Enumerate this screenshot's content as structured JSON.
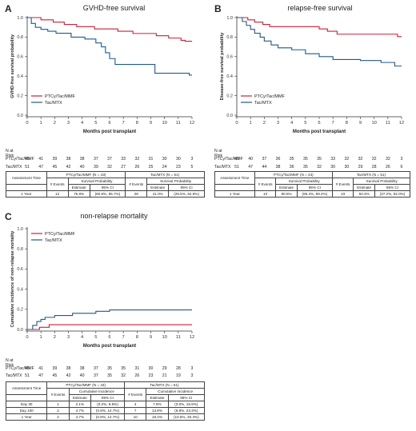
{
  "panels": {
    "A": {
      "letter": "A",
      "title": "GVHD-free survival",
      "ylabel": "GVHD-free survival probability",
      "xlabel": "Months post transplant",
      "legend": [
        "PTCy/Tac/MMF",
        "Tac/MTX"
      ],
      "risk_title": "N at Risk",
      "risk": [
        {
          "label": "PTCy/Tac/MMF",
          "values": [
            43,
            41,
            39,
            38,
            38,
            37,
            37,
            33,
            32,
            31,
            30,
            30,
            3
          ]
        },
        {
          "label": "Tac/MTX",
          "values": [
            51,
            47,
            45,
            42,
            40,
            39,
            32,
            27,
            26,
            25,
            24,
            23,
            5
          ]
        }
      ],
      "table": {
        "assess": "Assessment Time",
        "g1": "PTCy/Tac/MMF (N = 43)",
        "g2": "Tac/MTX (N = 51)",
        "sp": "Survival Probability",
        "events": "# Events",
        "est": "Estimate",
        "ci": "95% CI",
        "rows": [
          {
            "time": "1 Year",
            "e1": "12",
            "est1": "75.8%",
            "ci1": "(60.8%, 85.7%)",
            "e2": "28",
            "est2": "41.0%",
            "ci2": "(26.5%, 52.9%)"
          }
        ]
      }
    },
    "B": {
      "letter": "B",
      "title": "relapse-free survival",
      "ylabel": "Disease-free survival probability",
      "xlabel": "Months post transplant",
      "legend": [
        "PTCy/Tac/MMF",
        "Tac/MTX"
      ],
      "risk_title": "N at Risk",
      "risk": [
        {
          "label": "PTCy/Tac/MMF",
          "values": [
            43,
            40,
            37,
            36,
            35,
            35,
            35,
            33,
            32,
            32,
            32,
            32,
            3
          ]
        },
        {
          "label": "Tac/MTX",
          "values": [
            51,
            47,
            44,
            38,
            36,
            35,
            32,
            30,
            30,
            29,
            28,
            26,
            6
          ]
        }
      ],
      "table": {
        "assess": "Assessment Time",
        "g1": "PTCy/Tac/MMF (N = 43)",
        "g2": "Tac/MTX (N = 51)",
        "sp": "Survival Probability",
        "events": "# Events",
        "est": "Estimate",
        "ci": "95% CI",
        "rows": [
          {
            "time": "1 Year",
            "e1": "10",
            "est1": "80.5%",
            "ci1": "(66.2%, 89.2%)",
            "e2": "23",
            "est2": "50.3%",
            "ci2": "(37.2%, 62.0%)"
          }
        ]
      }
    },
    "C": {
      "letter": "C",
      "title": "non-relapse mortality",
      "ylabel": "Cumulative incidence of non-relapse mortality",
      "xlabel": "Months post transplant",
      "legend": [
        "PTCy/Tac/MMF",
        "Tac/MTX"
      ],
      "risk_title": "N at Risk",
      "risk": [
        {
          "label": "PTCy/Tac/MMF",
          "values": [
            43,
            41,
            39,
            38,
            38,
            37,
            35,
            35,
            31,
            30,
            29,
            28,
            3
          ]
        },
        {
          "label": "Tac/MTX",
          "values": [
            51,
            47,
            45,
            42,
            40,
            37,
            35,
            32,
            26,
            23,
            21,
            19,
            3
          ]
        }
      ],
      "table": {
        "assess": "Assessment Time",
        "g1": "PTCy/Tac/MMF (N = 43)",
        "g2": "Tac/MTX (N = 51)",
        "sp": "Cumulative Incidence",
        "events": "# Events",
        "est": "Estimate",
        "ci": "95% CI",
        "rows": [
          {
            "time": "Day 30",
            "e1": "1",
            "est1": "2.1%",
            "ci1": "(0.2%, 8.8%)",
            "e2": "4",
            "est2": "7.9%",
            "ci2": "(3.0%, 15.9%)"
          },
          {
            "time": "Day 100",
            "e1": "2",
            "est1": "4.7%",
            "ci1": "(0.8%, 14.7%)",
            "e2": "7",
            "est2": "13.8%",
            "ci2": "(6.8%, 23.3%)"
          },
          {
            "time": "1 Year",
            "e1": "2",
            "est1": "4.7%",
            "ci1": "(0.8%, 14.7%)",
            "e2": "10",
            "est2": "19.4%",
            "ci2": "(10.5%, 30.3%)"
          }
        ]
      }
    }
  },
  "colors": {
    "ptcy": "#c8203a",
    "tac": "#1f5a8a",
    "axis": "#333333"
  },
  "chart_data": [
    {
      "type": "line",
      "title": "GVHD-free survival",
      "xlabel": "Months post transplant",
      "ylabel": "GVHD-free survival probability",
      "xlim": [
        0,
        12
      ],
      "ylim": [
        0,
        1.0
      ],
      "xticks": [
        0,
        1,
        2,
        3,
        4,
        5,
        6,
        7,
        8,
        9,
        10,
        11,
        12
      ],
      "yticks": [
        0.0,
        0.2,
        0.4,
        0.6,
        0.8,
        1.0
      ],
      "legend_position": "bottom-left",
      "series": [
        {
          "name": "PTCy/Tac/MMF",
          "step": true,
          "x": [
            0,
            1.0,
            1.9,
            2.7,
            3.6,
            4.9,
            6.6,
            7.7,
            9.4,
            10.3,
            11.2,
            11.5,
            12
          ],
          "y": [
            1.0,
            0.977,
            0.953,
            0.93,
            0.907,
            0.884,
            0.86,
            0.837,
            0.814,
            0.79,
            0.767,
            0.758,
            0.758
          ]
        },
        {
          "name": "Tac/MTX",
          "step": true,
          "x": [
            0,
            0.3,
            0.6,
            1.0,
            1.5,
            2.1,
            3.2,
            4.2,
            5.0,
            5.4,
            5.7,
            6.0,
            6.4,
            9.3,
            11.8,
            12
          ],
          "y": [
            1.0,
            0.94,
            0.9,
            0.88,
            0.86,
            0.84,
            0.8,
            0.78,
            0.74,
            0.7,
            0.64,
            0.58,
            0.52,
            0.43,
            0.41,
            0.41
          ]
        }
      ]
    },
    {
      "type": "line",
      "title": "relapse-free survival",
      "xlabel": "Months post transplant",
      "ylabel": "Disease-free survival probability",
      "xlim": [
        0,
        12
      ],
      "ylim": [
        0,
        1.0
      ],
      "xticks": [
        0,
        1,
        2,
        3,
        4,
        5,
        6,
        7,
        8,
        9,
        10,
        11,
        12
      ],
      "yticks": [
        0.0,
        0.2,
        0.4,
        0.6,
        0.8,
        1.0
      ],
      "legend_position": "bottom-left",
      "series": [
        {
          "name": "PTCy/Tac/MMF",
          "step": true,
          "x": [
            0,
            0.8,
            1.3,
            1.9,
            2.4,
            6.0,
            6.6,
            7.3,
            11.7,
            12
          ],
          "y": [
            1.0,
            0.977,
            0.953,
            0.93,
            0.907,
            0.884,
            0.86,
            0.83,
            0.805,
            0.805
          ]
        },
        {
          "name": "Tac/MTX",
          "step": true,
          "x": [
            0,
            0.4,
            0.7,
            1.0,
            1.3,
            1.7,
            2.0,
            2.5,
            3.0,
            4.0,
            5.0,
            6.0,
            7.0,
            9.0,
            10.5,
            11.5,
            12
          ],
          "y": [
            1.0,
            0.96,
            0.92,
            0.88,
            0.84,
            0.8,
            0.76,
            0.72,
            0.69,
            0.67,
            0.63,
            0.6,
            0.57,
            0.56,
            0.54,
            0.503,
            0.503
          ]
        }
      ]
    },
    {
      "type": "line",
      "title": "non-relapse mortality",
      "xlabel": "Months post transplant",
      "ylabel": "Cumulative incidence of non-relapse mortality",
      "xlim": [
        0,
        12
      ],
      "ylim": [
        0,
        1.0
      ],
      "xticks": [
        0,
        1,
        2,
        3,
        4,
        5,
        6,
        7,
        8,
        9,
        10,
        11,
        12
      ],
      "yticks": [
        0.0,
        0.2,
        0.4,
        0.6,
        0.8,
        1.0
      ],
      "legend_position": "top-left",
      "series": [
        {
          "name": "PTCy/Tac/MMF",
          "step": true,
          "x": [
            0,
            0.9,
            1.6,
            12
          ],
          "y": [
            0,
            0.021,
            0.047,
            0.047
          ]
        },
        {
          "name": "Tac/MTX",
          "step": true,
          "x": [
            0,
            0.4,
            0.7,
            1.0,
            1.3,
            2.0,
            3.3,
            5.0,
            6.0,
            12
          ],
          "y": [
            0,
            0.04,
            0.079,
            0.1,
            0.12,
            0.138,
            0.16,
            0.18,
            0.194,
            0.194
          ]
        }
      ]
    }
  ]
}
